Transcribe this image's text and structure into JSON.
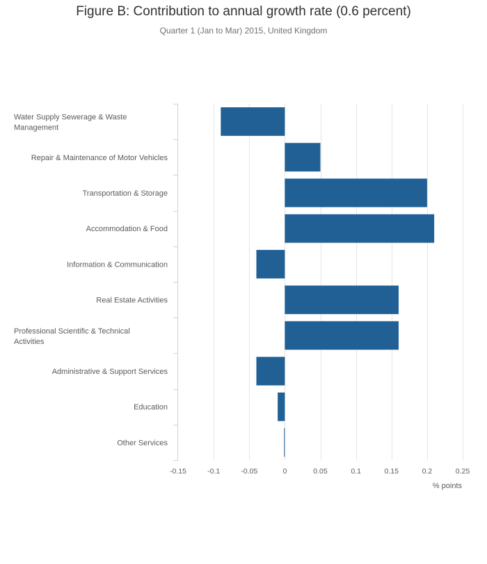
{
  "chart_data": {
    "type": "bar",
    "orientation": "horizontal",
    "title": "Figure B: Contribution to annual growth rate (0.6 percent)",
    "subtitle": "Quarter 1 (Jan to Mar) 2015, United Kingdom",
    "xlabel": "% points",
    "ylabel": "",
    "xlim": [
      -0.15,
      0.25
    ],
    "xticks": [
      "-0.15",
      "-0.1",
      "-0.05",
      "0",
      "0.05",
      "0.1",
      "0.15",
      "0.2",
      "0.25"
    ],
    "xtick_values": [
      -0.15,
      -0.1,
      -0.05,
      0,
      0.05,
      0.1,
      0.15,
      0.2,
      0.25
    ],
    "grid": "vertical",
    "legend": "none",
    "bar_color": "#206095",
    "categories": [
      "Water Supply Sewerage & Waste Management",
      "Repair & Maintenance of Motor Vehicles",
      "Transportation & Storage",
      "Accommodation & Food",
      "Information & Communication",
      "Real Estate Activities",
      "Professional Scientific & Technical Activities",
      "Administrative & Support Services",
      "Education",
      "Other Services"
    ],
    "category_lines": [
      [
        "Water Supply Sewerage & Waste",
        "Management"
      ],
      [
        "Repair & Maintenance of Motor Vehicles"
      ],
      [
        "Transportation & Storage"
      ],
      [
        "Accommodation & Food"
      ],
      [
        "Information & Communication"
      ],
      [
        "Real Estate Activities"
      ],
      [
        "Professional Scientific & Technical",
        "Activities"
      ],
      [
        "Administrative & Support Services"
      ],
      [
        "Education"
      ],
      [
        "Other Services"
      ]
    ],
    "values": [
      -0.09,
      0.05,
      0.2,
      0.21,
      -0.04,
      0.16,
      0.16,
      -0.04,
      -0.01,
      -0.001
    ]
  }
}
